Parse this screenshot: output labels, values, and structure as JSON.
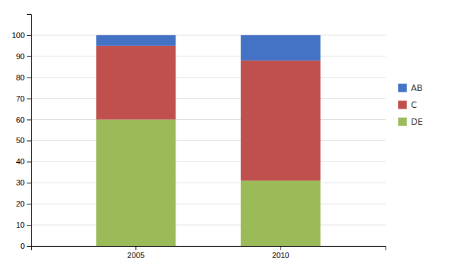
{
  "chart_data": {
    "type": "bar",
    "stacked": true,
    "categories": [
      "2005",
      "2010"
    ],
    "series": [
      {
        "name": "DE",
        "color": "#9BBB59",
        "values": [
          60,
          31
        ]
      },
      {
        "name": "C",
        "color": "#C0504D",
        "values": [
          35,
          57
        ]
      },
      {
        "name": "AB",
        "color": "#4472C4",
        "values": [
          5,
          12
        ]
      }
    ],
    "ylim": [
      0,
      110
    ],
    "yticks": [
      0,
      10,
      20,
      30,
      40,
      50,
      60,
      70,
      80,
      90,
      100
    ],
    "grid": true,
    "legend": "right"
  }
}
